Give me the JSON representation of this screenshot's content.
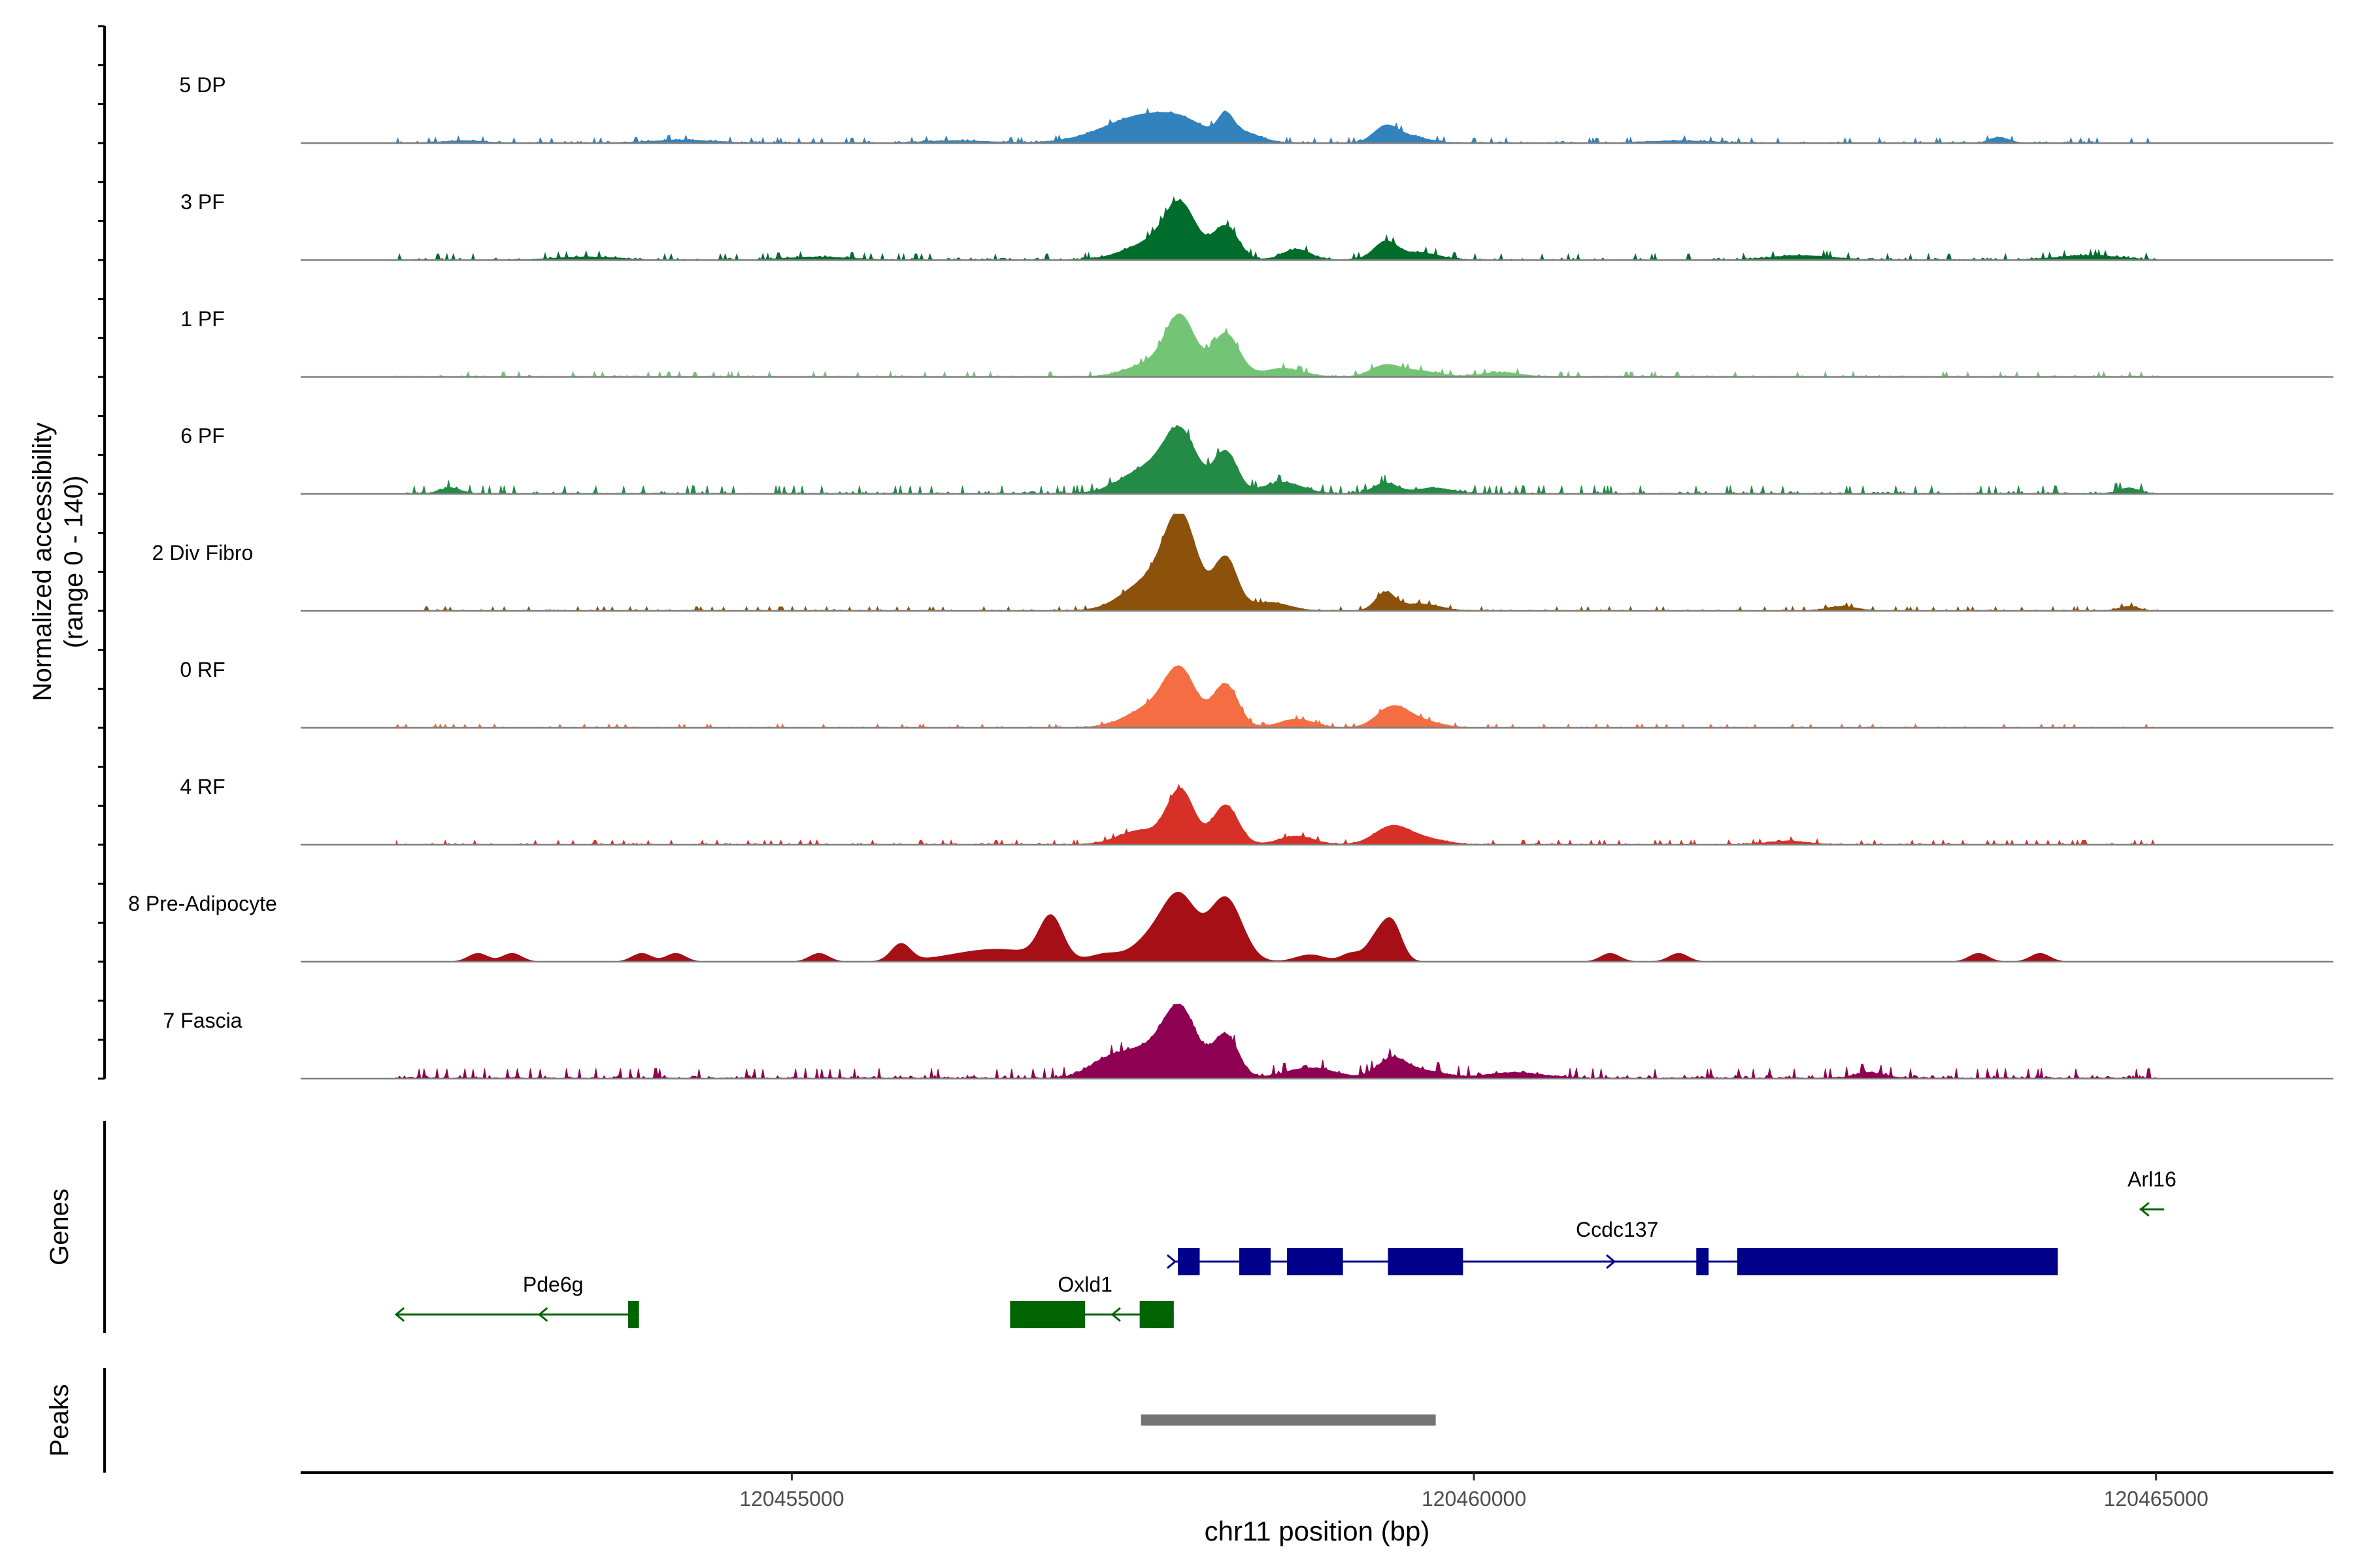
{
  "chart_data": {
    "type": "area",
    "title": "",
    "ylabel_line1": "Normalized accessibility",
    "ylabel_line2": "(range 0 - 140)",
    "xlabel": "chr11 position (bp)",
    "chromosome": "chr11",
    "xlim": [
      120451400,
      120466300
    ],
    "ylim": [
      0,
      140
    ],
    "xticks": [
      120455000,
      120460000,
      120465000
    ],
    "xtick_labels": [
      "120455000",
      "120460000",
      "120465000"
    ],
    "track_labels": {
      "genes": "Genes",
      "peaks": "Peaks"
    },
    "signal_range": [
      120452100,
      120465020
    ],
    "tracks": [
      {
        "name": "5 DP",
        "color": "#3182bd",
        "peaks": [
          [
            120457880,
            12,
            220
          ],
          [
            120457600,
            40,
            420
          ],
          [
            120458180,
            28,
            80
          ],
          [
            120458300,
            14,
            180
          ],
          [
            120459350,
            20,
            120
          ],
          [
            120459500,
            10,
            200
          ],
          [
            120463850,
            8,
            90
          ],
          [
            120452600,
            3,
            200
          ],
          [
            120454200,
            4,
            300
          ],
          [
            120456200,
            3,
            300
          ],
          [
            120461500,
            3,
            300
          ]
        ],
        "noise": 2.5
      },
      {
        "name": "3 PF",
        "color": "#006d2c",
        "peaks": [
          [
            120457850,
            70,
            160
          ],
          [
            120458180,
            48,
            130
          ],
          [
            120457650,
            25,
            280
          ],
          [
            120458700,
            15,
            140
          ],
          [
            120459350,
            25,
            120
          ],
          [
            120459600,
            10,
            200
          ],
          [
            120462400,
            6,
            300
          ],
          [
            120464500,
            6,
            300
          ],
          [
            120453500,
            4,
            300
          ],
          [
            120455200,
            4,
            300
          ]
        ],
        "noise": 3
      },
      {
        "name": "1 PF",
        "color": "#74c476",
        "peaks": [
          [
            120457850,
            80,
            150
          ],
          [
            120458180,
            62,
            140
          ],
          [
            120457650,
            20,
            250
          ],
          [
            120458600,
            12,
            200
          ],
          [
            120459350,
            16,
            150
          ],
          [
            120459600,
            8,
            200
          ],
          [
            120460200,
            6,
            200
          ]
        ],
        "noise": 2.5
      },
      {
        "name": "6 PF",
        "color": "#238b45",
        "peaks": [
          [
            120457850,
            82,
            170
          ],
          [
            120458180,
            60,
            120
          ],
          [
            120457600,
            35,
            260
          ],
          [
            120458600,
            16,
            200
          ],
          [
            120459350,
            15,
            120
          ],
          [
            120459700,
            8,
            200
          ],
          [
            120452500,
            8,
            100
          ],
          [
            120464800,
            8,
            100
          ]
        ],
        "noise": 4
      },
      {
        "name": "2 Div Fibro",
        "color": "#8c510a",
        "peaks": [
          [
            120457850,
            130,
            170
          ],
          [
            120458180,
            75,
            120
          ],
          [
            120457600,
            40,
            250
          ],
          [
            120458500,
            12,
            200
          ],
          [
            120459350,
            25,
            100
          ],
          [
            120459600,
            10,
            200
          ],
          [
            120464800,
            6,
            100
          ],
          [
            120462700,
            6,
            150
          ]
        ],
        "noise": 2
      },
      {
        "name": "0 RF",
        "color": "#f46d43",
        "peaks": [
          [
            120457850,
            72,
            160
          ],
          [
            120458180,
            62,
            130
          ],
          [
            120457650,
            30,
            260
          ],
          [
            120458700,
            12,
            180
          ],
          [
            120459400,
            28,
            160
          ],
          [
            120459600,
            10,
            200
          ]
        ],
        "noise": 1.8
      },
      {
        "name": "4 RF",
        "color": "#d73027",
        "peaks": [
          [
            120457850,
            78,
            140
          ],
          [
            120458180,
            57,
            130
          ],
          [
            120457550,
            20,
            220
          ],
          [
            120458700,
            12,
            180
          ],
          [
            120459400,
            26,
            180
          ],
          [
            120459650,
            8,
            200
          ],
          [
            120462300,
            5,
            200
          ]
        ],
        "noise": 2.2
      },
      {
        "name": "8 Pre-Adipocyte",
        "color": "#a50f15",
        "peaks": [
          [
            120457850,
            85,
            170
          ],
          [
            120458180,
            92,
            170
          ],
          [
            120457650,
            35,
            200
          ],
          [
            120456900,
            60,
            120
          ],
          [
            120456500,
            18,
            450
          ],
          [
            120457300,
            10,
            150
          ],
          [
            120459400,
            55,
            100
          ],
          [
            120459280,
            30,
            100
          ],
          [
            120458800,
            10,
            150
          ],
          [
            120455800,
            25,
            100
          ],
          [
            120453900,
            12,
            100
          ],
          [
            120452700,
            12,
            100
          ],
          [
            120452950,
            12,
            100
          ],
          [
            120455200,
            12,
            100
          ],
          [
            120454150,
            12,
            100
          ],
          [
            120461000,
            12,
            100
          ],
          [
            120461500,
            12,
            100
          ],
          [
            120463700,
            12,
            100
          ],
          [
            120464150,
            12,
            100
          ],
          [
            120459100,
            12,
            100
          ]
        ],
        "noise": 0
      },
      {
        "name": "7 Fascia",
        "color": "#8e0152",
        "peaks": [
          [
            120457850,
            90,
            170
          ],
          [
            120458180,
            62,
            130
          ],
          [
            120457600,
            40,
            260
          ],
          [
            120457300,
            20,
            200
          ],
          [
            120458800,
            15,
            250
          ],
          [
            120459400,
            28,
            150
          ],
          [
            120459650,
            10,
            200
          ],
          [
            120460300,
            8,
            300
          ],
          [
            120462900,
            8,
            150
          ]
        ],
        "noise": 5
      }
    ],
    "genes": [
      {
        "name": "Ccdc137",
        "strand": "+",
        "start": 120457800,
        "end": 120463400,
        "color": "#00008b",
        "exons": [
          [
            120457830,
            120457990
          ],
          [
            120458280,
            120458510
          ],
          [
            120458630,
            120459040
          ],
          [
            120459370,
            120459920
          ],
          [
            120461630,
            120461720
          ],
          [
            120461930,
            120464280
          ]
        ],
        "arrows": [
          120457810,
          120461030
        ]
      },
      {
        "name": "Pde6g",
        "strand": "-",
        "start": 120452100,
        "end": 120453880,
        "color": "#006400",
        "exons": [
          [
            120453800,
            120453880
          ]
        ],
        "arrows": [
          120452100,
          120453150
        ]
      },
      {
        "name": "Oxld1",
        "strand": "-",
        "start": 120456600,
        "end": 120457800,
        "color": "#006400",
        "exons": [
          [
            120456600,
            120457150
          ],
          [
            120457550,
            120457800
          ]
        ],
        "arrows": [
          120457350
        ]
      },
      {
        "name": "Arl16",
        "strand": "-",
        "start": 120464880,
        "end": 120465060,
        "color": "#006400",
        "exons": [],
        "arrows": [
          120464890
        ]
      }
    ],
    "peaks_track": [
      {
        "start": 120457560,
        "end": 120459720,
        "color": "#737373"
      }
    ]
  }
}
